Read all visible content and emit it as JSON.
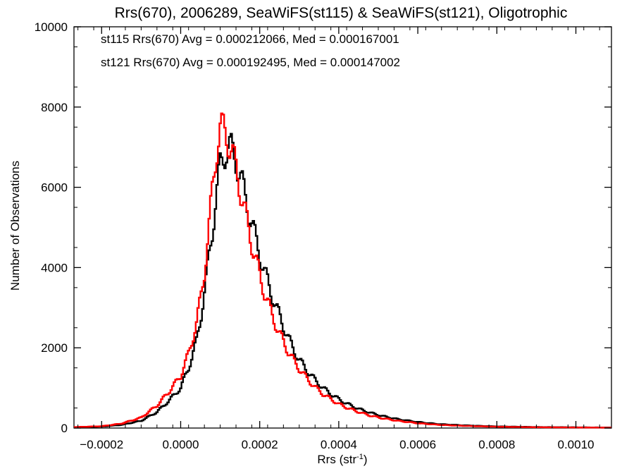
{
  "chart_data": {
    "type": "line",
    "title": "Rrs(670), 2006289, SeaWiFS(st115) & SeaWiFS(st121), Oligotrophic",
    "xlabel": "Rrs (str",
    "xlabel_sup": "-1",
    "xlabel_end": ")",
    "ylabel": "Number of Observations",
    "xlim": [
      -0.00027,
      0.00109
    ],
    "ylim": [
      0,
      10000
    ],
    "grid": false,
    "legend_position": "top-left",
    "x_ticks": [
      {
        "value": -0.0002,
        "label": "-0.0002"
      },
      {
        "value": 0.0,
        "label": "0.0000"
      },
      {
        "value": 0.0002,
        "label": "0.0002"
      },
      {
        "value": 0.0004,
        "label": "0.0004"
      },
      {
        "value": 0.0006,
        "label": "0.0006"
      },
      {
        "value": 0.0008,
        "label": "0.0008"
      },
      {
        "value": 0.001,
        "label": "0.0010"
      }
    ],
    "y_ticks": [
      {
        "value": 0,
        "label": "0"
      },
      {
        "value": 2000,
        "label": "2000"
      },
      {
        "value": 4000,
        "label": "4000"
      },
      {
        "value": 6000,
        "label": "6000"
      },
      {
        "value": 8000,
        "label": "8000"
      },
      {
        "value": 10000,
        "label": "10000"
      }
    ],
    "legend": [
      {
        "text": "st115 Rrs(670) Avg = 0.000212066, Med = 0.000167001",
        "color": "#000000"
      },
      {
        "text": "st121 Rrs(670) Avg = 0.000192495, Med = 0.000147002",
        "color": "#ff0000"
      }
    ],
    "series": [
      {
        "color": "#000000",
        "points": [
          [
            -0.00027,
            20
          ],
          [
            -0.0002,
            35
          ],
          [
            -0.00015,
            80
          ],
          [
            -0.0001,
            180
          ],
          [
            -6e-05,
            400
          ],
          [
            -3e-05,
            680
          ],
          [
            0.0,
            1000
          ],
          [
            2e-05,
            1500
          ],
          [
            4e-05,
            2150
          ],
          [
            5e-05,
            2700
          ],
          [
            6e-05,
            3400
          ],
          [
            7e-05,
            4100
          ],
          [
            8e-05,
            4900
          ],
          [
            9e-05,
            5800
          ],
          [
            0.0001,
            6500
          ],
          [
            0.00011,
            6850
          ],
          [
            0.00012,
            7000
          ],
          [
            0.00013,
            6900
          ],
          [
            0.00014,
            6700
          ],
          [
            0.00015,
            6300
          ],
          [
            0.00016,
            5900
          ],
          [
            0.00017,
            5500
          ],
          [
            0.00018,
            5100
          ],
          [
            0.00019,
            4700
          ],
          [
            0.0002,
            4350
          ],
          [
            0.00021,
            3950
          ],
          [
            0.00022,
            3650
          ],
          [
            0.00023,
            3350
          ],
          [
            0.00024,
            3050
          ],
          [
            0.00025,
            2800
          ],
          [
            0.00026,
            2550
          ],
          [
            0.00027,
            2300
          ],
          [
            0.00028,
            2080
          ],
          [
            0.00029,
            1880
          ],
          [
            0.0003,
            1700
          ],
          [
            0.00032,
            1430
          ],
          [
            0.00034,
            1200
          ],
          [
            0.00036,
            1000
          ],
          [
            0.00038,
            850
          ],
          [
            0.0004,
            720
          ],
          [
            0.00042,
            610
          ],
          [
            0.00045,
            480
          ],
          [
            0.00048,
            380
          ],
          [
            0.00051,
            300
          ],
          [
            0.00055,
            220
          ],
          [
            0.0006,
            150
          ],
          [
            0.00065,
            100
          ],
          [
            0.0007,
            75
          ],
          [
            0.00075,
            55
          ],
          [
            0.0008,
            40
          ],
          [
            0.0009,
            25
          ],
          [
            0.001,
            18
          ],
          [
            0.00109,
            12
          ]
        ]
      },
      {
        "color": "#ff0000",
        "points": [
          [
            -0.00027,
            25
          ],
          [
            -0.0002,
            45
          ],
          [
            -0.00015,
            110
          ],
          [
            -0.0001,
            260
          ],
          [
            -6e-05,
            560
          ],
          [
            -3e-05,
            900
          ],
          [
            0.0,
            1300
          ],
          [
            2e-05,
            1850
          ],
          [
            4e-05,
            2600
          ],
          [
            5e-05,
            3200
          ],
          [
            6e-05,
            3900
          ],
          [
            7e-05,
            4800
          ],
          [
            8e-05,
            5900
          ],
          [
            9e-05,
            6900
          ],
          [
            0.0001,
            7450
          ],
          [
            0.00011,
            7400
          ],
          [
            0.00012,
            7200
          ],
          [
            0.00013,
            6850
          ],
          [
            0.00014,
            6450
          ],
          [
            0.00015,
            6000
          ],
          [
            0.00016,
            5500
          ],
          [
            0.00017,
            5050
          ],
          [
            0.00018,
            4600
          ],
          [
            0.00019,
            4200
          ],
          [
            0.0002,
            3800
          ],
          [
            0.00021,
            3450
          ],
          [
            0.00022,
            3150
          ],
          [
            0.00023,
            2850
          ],
          [
            0.00024,
            2600
          ],
          [
            0.00025,
            2350
          ],
          [
            0.00026,
            2150
          ],
          [
            0.00027,
            1950
          ],
          [
            0.00028,
            1780
          ],
          [
            0.00029,
            1620
          ],
          [
            0.0003,
            1480
          ],
          [
            0.00032,
            1230
          ],
          [
            0.00034,
            1020
          ],
          [
            0.00036,
            850
          ],
          [
            0.00038,
            720
          ],
          [
            0.0004,
            600
          ],
          [
            0.00042,
            510
          ],
          [
            0.00045,
            400
          ],
          [
            0.00048,
            310
          ],
          [
            0.00051,
            245
          ],
          [
            0.00055,
            180
          ],
          [
            0.0006,
            120
          ],
          [
            0.00065,
            82
          ],
          [
            0.0007,
            60
          ],
          [
            0.00075,
            45
          ],
          [
            0.0008,
            33
          ],
          [
            0.0009,
            20
          ],
          [
            0.001,
            14
          ],
          [
            0.00109,
            10
          ]
        ]
      }
    ]
  }
}
